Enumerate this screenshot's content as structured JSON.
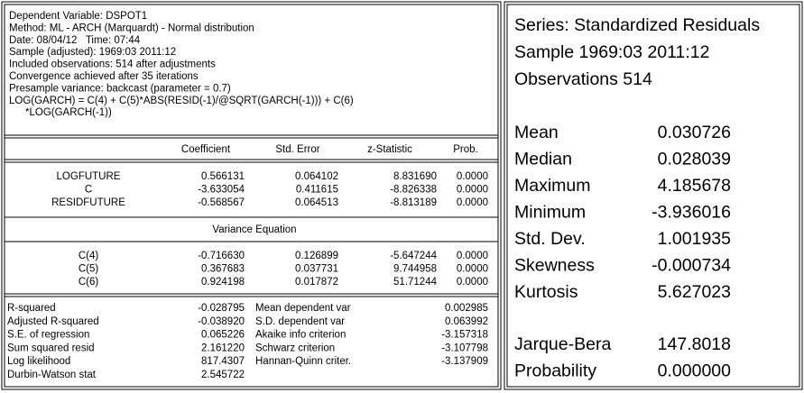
{
  "left": {
    "header": [
      "Dependent Variable: DSPOT1",
      "Method: ML - ARCH (Marquardt) - Normal distribution",
      "Date: 08/04/12   Time: 07:44",
      "Sample (adjusted): 1969:03 2011:12",
      "Included observations: 514 after adjustments",
      "Convergence achieved after 35 iterations",
      "Presample variance: backcast (parameter = 0.7)",
      "LOG(GARCH) = C(4) + C(5)*ABS(RESID(-1)/@SQRT(GARCH(-1))) + C(6)",
      "*LOG(GARCH(-1))"
    ],
    "columns": [
      "Coefficient",
      "Std. Error",
      "z-Statistic",
      "Prob."
    ],
    "mean_rows": [
      [
        "LOGFUTURE",
        "0.566131",
        "0.064102",
        "8.831690",
        "0.0000"
      ],
      [
        "C",
        "-3.633054",
        "0.411615",
        "-8.826338",
        "0.0000"
      ],
      [
        "RESIDFUTURE",
        "-0.568567",
        "0.064513",
        "-8.813189",
        "0.0000"
      ]
    ],
    "variance_title": "Variance Equation",
    "variance_rows": [
      [
        "C(4)",
        "-0.716630",
        "0.126899",
        "-5.647244",
        "0.0000"
      ],
      [
        "C(5)",
        "0.367683",
        "0.037731",
        "9.744958",
        "0.0000"
      ],
      [
        "C(6)",
        "0.924198",
        "0.017872",
        "51.71244",
        "0.0000"
      ]
    ],
    "stats": [
      [
        "R-squared",
        "-0.028795",
        "Mean dependent var",
        "0.002985"
      ],
      [
        "Adjusted R-squared",
        "-0.038920",
        "S.D. dependent var",
        "0.063992"
      ],
      [
        "S.E. of regression",
        "0.065226",
        "Akaike info criterion",
        "-3.157318"
      ],
      [
        "Sum squared resid",
        "2.161220",
        "Schwarz criterion",
        "-3.107798"
      ],
      [
        "Log likelihood",
        "817.4307",
        "Hannan-Quinn criter.",
        "-3.137909"
      ],
      [
        "Durbin-Watson stat",
        "2.545722"
      ]
    ]
  },
  "right": {
    "title": "Series: Standardized Residuals",
    "sample": "Sample 1969:03 2011:12",
    "observations": "Observations 514",
    "stats": [
      [
        "Mean",
        "0.030726"
      ],
      [
        "Median",
        "0.028039"
      ],
      [
        "Maximum",
        "4.185678"
      ],
      [
        "Minimum",
        "-3.936016"
      ],
      [
        "Std. Dev.",
        "1.001935"
      ],
      [
        "Skewness",
        "-0.000734"
      ],
      [
        "Kurtosis",
        "5.627023"
      ]
    ],
    "tests": [
      [
        "Jarque-Bera",
        "147.8018"
      ],
      [
        "Probability",
        "0.000000"
      ]
    ]
  }
}
